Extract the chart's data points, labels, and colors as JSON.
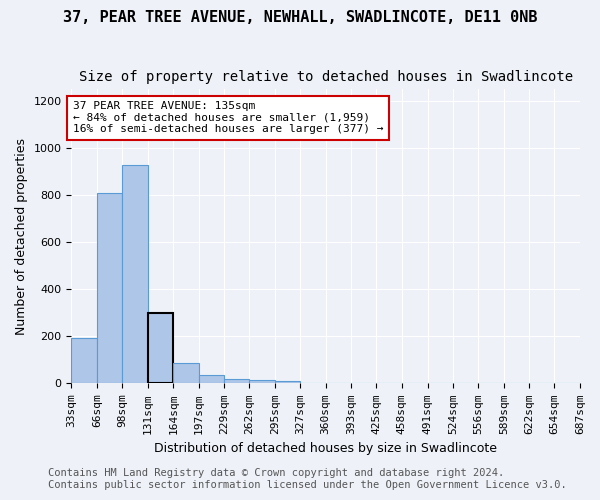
{
  "title": "37, PEAR TREE AVENUE, NEWHALL, SWADLINCOTE, DE11 0NB",
  "subtitle": "Size of property relative to detached houses in Swadlincote",
  "xlabel": "Distribution of detached houses by size in Swadlincote",
  "ylabel": "Number of detached properties",
  "footnote1": "Contains HM Land Registry data © Crown copyright and database right 2024.",
  "footnote2": "Contains public sector information licensed under the Open Government Licence v3.0.",
  "annotation_line1": "37 PEAR TREE AVENUE: 135sqm",
  "annotation_line2": "← 84% of detached houses are smaller (1,959)",
  "annotation_line3": "16% of semi-detached houses are larger (377) →",
  "bar_color": "#aec6e8",
  "bar_edge_color": "#5b9bd5",
  "highlight_bar_edge": "#000000",
  "background_color": "#eef2f8",
  "annotation_box_edge": "#cc0000",
  "bins": [
    33,
    66,
    98,
    131,
    164,
    197,
    229,
    262,
    295,
    327,
    360,
    393,
    425,
    458,
    491,
    524,
    556,
    589,
    622,
    654,
    687
  ],
  "bin_labels": [
    "33sqm",
    "66sqm",
    "98sqm",
    "131sqm",
    "164sqm",
    "197sqm",
    "229sqm",
    "262sqm",
    "295sqm",
    "327sqm",
    "360sqm",
    "393sqm",
    "425sqm",
    "458sqm",
    "491sqm",
    "524sqm",
    "556sqm",
    "589sqm",
    "622sqm",
    "654sqm",
    "687sqm"
  ],
  "values": [
    195,
    810,
    930,
    300,
    85,
    38,
    18,
    15,
    11,
    0,
    0,
    0,
    0,
    0,
    0,
    0,
    0,
    0,
    0,
    0
  ],
  "highlight_bin_index": 3,
  "ylim": [
    0,
    1250
  ],
  "yticks": [
    0,
    200,
    400,
    600,
    800,
    1000,
    1200
  ],
  "grid_color": "#ffffff",
  "title_fontsize": 11,
  "subtitle_fontsize": 10,
  "axis_label_fontsize": 9,
  "tick_fontsize": 8,
  "annotation_fontsize": 8,
  "footnote_fontsize": 7.5
}
